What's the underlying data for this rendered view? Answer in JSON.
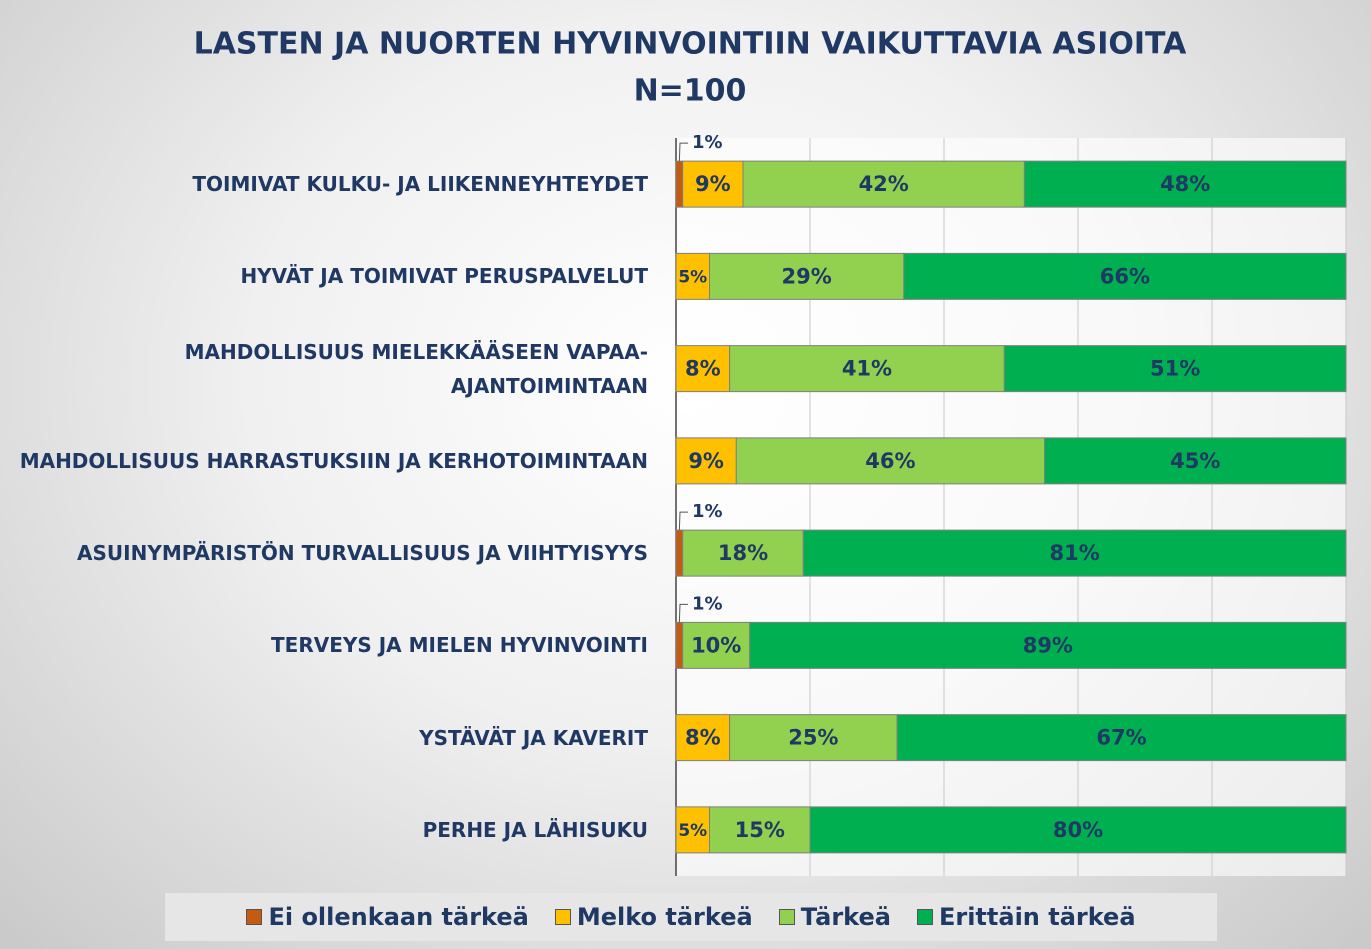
{
  "chart_data": {
    "type": "stacked-bar-horizontal",
    "title": "LASTEN JA NUORTEN HYVINVOINTIIN VAIKUTTAVIA ASIOITA",
    "subtitle": "N=100",
    "categories": [
      "TOIMIVAT KULKU- JA LIIKENNEYHTEYDET",
      "HYVÄT JA TOIMIVAT PERUSPALVELUT",
      "MAHDOLLISUUS MIELEKKÄÄSEEN VAPAA-AJANTOIMINTAAN",
      "MAHDOLLISUUS HARRASTUKSIIN JA KERHOTOIMINTAAN",
      "ASUINYMPÄRISTÖN TURVALLISUUS JA VIIHTYISYYS",
      "TERVEYS JA MIELEN HYVINVOINTI",
      "YSTÄVÄT JA KAVERIT",
      "PERHE JA LÄHISUKU"
    ],
    "series": [
      {
        "name": "Ei ollenkaan tärkeä",
        "color": "#c55a11",
        "values": [
          1,
          null,
          null,
          null,
          1,
          1,
          null,
          null
        ],
        "value_labels": [
          "1%",
          null,
          null,
          null,
          "1%",
          "1%",
          null,
          null
        ]
      },
      {
        "name": "Melko tärkeä",
        "color": "#ffc000",
        "values": [
          9,
          5,
          8,
          9,
          null,
          null,
          8,
          5
        ],
        "value_labels": [
          "9%",
          "5%",
          "8%",
          "9%",
          null,
          null,
          "8%",
          "5%"
        ]
      },
      {
        "name": "Tärkeä",
        "color": "#92d050",
        "values": [
          42,
          29,
          41,
          46,
          18,
          10,
          25,
          15
        ],
        "value_labels": [
          "42%",
          "29%",
          "41%",
          "46%",
          "18%",
          "10%",
          "25%",
          "15%"
        ]
      },
      {
        "name": "Erittäin tärkeä",
        "color": "#00b050",
        "values": [
          48,
          66,
          51,
          45,
          81,
          89,
          67,
          80
        ],
        "value_labels": [
          "48%",
          "66%",
          "51%",
          "45%",
          "81%",
          "89%",
          "67%",
          "80%"
        ]
      }
    ],
    "xlim": [
      0,
      100
    ],
    "xticks": [
      0,
      20,
      40,
      60,
      80,
      100
    ],
    "grid": true,
    "legend": "bottom"
  }
}
